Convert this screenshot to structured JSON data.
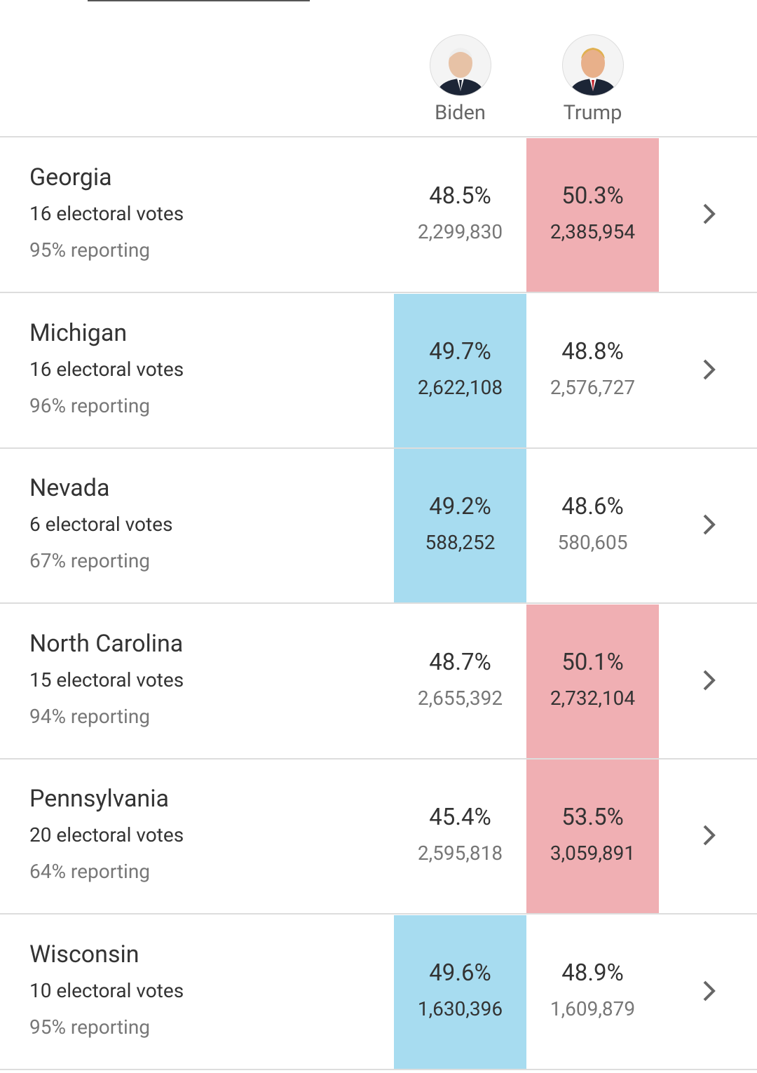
{
  "header": {
    "candidates": [
      {
        "name": "Biden",
        "color": "#a7dcf0"
      },
      {
        "name": "Trump",
        "color": "#f0afb3"
      }
    ]
  },
  "rows": [
    {
      "state": "Georgia",
      "electoral_votes": "16 electoral votes",
      "reporting": "95% reporting",
      "results": [
        {
          "percent": "48.5%",
          "votes": "2,299,830"
        },
        {
          "percent": "50.3%",
          "votes": "2,385,954"
        }
      ],
      "leader": 1
    },
    {
      "state": "Michigan",
      "electoral_votes": "16 electoral votes",
      "reporting": "96% reporting",
      "results": [
        {
          "percent": "49.7%",
          "votes": "2,622,108"
        },
        {
          "percent": "48.8%",
          "votes": "2,576,727"
        }
      ],
      "leader": 0
    },
    {
      "state": "Nevada",
      "electoral_votes": "6 electoral votes",
      "reporting": "67% reporting",
      "results": [
        {
          "percent": "49.2%",
          "votes": "588,252"
        },
        {
          "percent": "48.6%",
          "votes": "580,605"
        }
      ],
      "leader": 0
    },
    {
      "state": "North Carolina",
      "electoral_votes": "15 electoral votes",
      "reporting": "94% reporting",
      "results": [
        {
          "percent": "48.7%",
          "votes": "2,655,392"
        },
        {
          "percent": "50.1%",
          "votes": "2,732,104"
        }
      ],
      "leader": 1
    },
    {
      "state": "Pennsylvania",
      "electoral_votes": "20 electoral votes",
      "reporting": "64% reporting",
      "results": [
        {
          "percent": "45.4%",
          "votes": "2,595,818"
        },
        {
          "percent": "53.5%",
          "votes": "3,059,891"
        }
      ],
      "leader": 1
    },
    {
      "state": "Wisconsin",
      "electoral_votes": "10 electoral votes",
      "reporting": "95% reporting",
      "results": [
        {
          "percent": "49.6%",
          "votes": "1,630,396"
        },
        {
          "percent": "48.9%",
          "votes": "1,609,879"
        }
      ],
      "leader": 0
    }
  ]
}
